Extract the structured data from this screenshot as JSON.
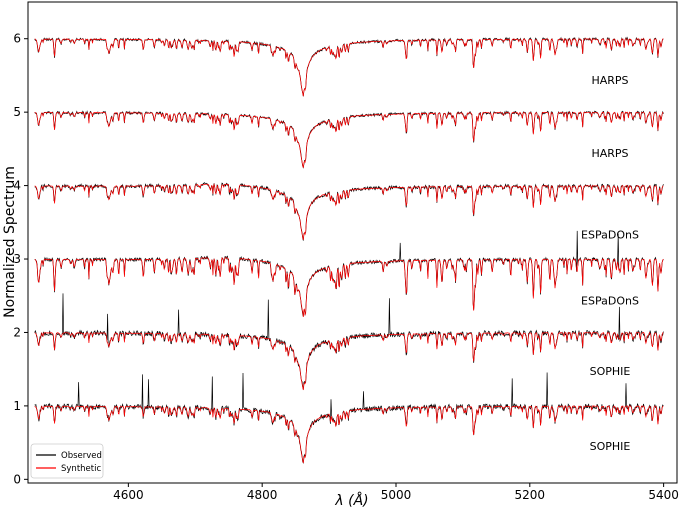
{
  "chart_data": {
    "type": "line",
    "title": "",
    "xlabel": "λ (Å)",
    "ylabel": "Normalized Spectrum",
    "xlim": [
      4450,
      5420
    ],
    "ylim": [
      -0.05,
      6.5
    ],
    "x_ticks": [
      4600,
      4800,
      5000,
      5200,
      5400
    ],
    "y_ticks": [
      0,
      1,
      2,
      3,
      4,
      5,
      6
    ],
    "grid": false,
    "legend": {
      "placement": "bottom-left",
      "entries": [
        "Observed",
        "Synthetic"
      ]
    },
    "line_center": 4861,
    "x_range": [
      4460,
      5400
    ],
    "series": [
      {
        "name": "Observed",
        "color": "#000000"
      },
      {
        "name": "Synthetic",
        "color": "#ff0000"
      }
    ],
    "spectra": [
      {
        "instrument": "SOPHIE",
        "offset": 0,
        "core_depth": 0.75,
        "label_y": 0.4
      },
      {
        "instrument": "SOPHIE",
        "offset": 1,
        "core_depth": 0.75,
        "label_y": 1.42
      },
      {
        "instrument": "ESPaDOnS",
        "offset": 2,
        "core_depth": 0.74,
        "label_y": 2.38
      },
      {
        "instrument": "ESPaDOnS",
        "offset": 3,
        "core_depth": 0.72,
        "label_y": 3.28
      },
      {
        "instrument": "HARPS",
        "offset": 4,
        "core_depth": 0.73,
        "label_y": 4.39
      },
      {
        "instrument": "HARPS",
        "offset": 5,
        "core_depth": 0.75,
        "label_y": 5.38
      }
    ]
  }
}
